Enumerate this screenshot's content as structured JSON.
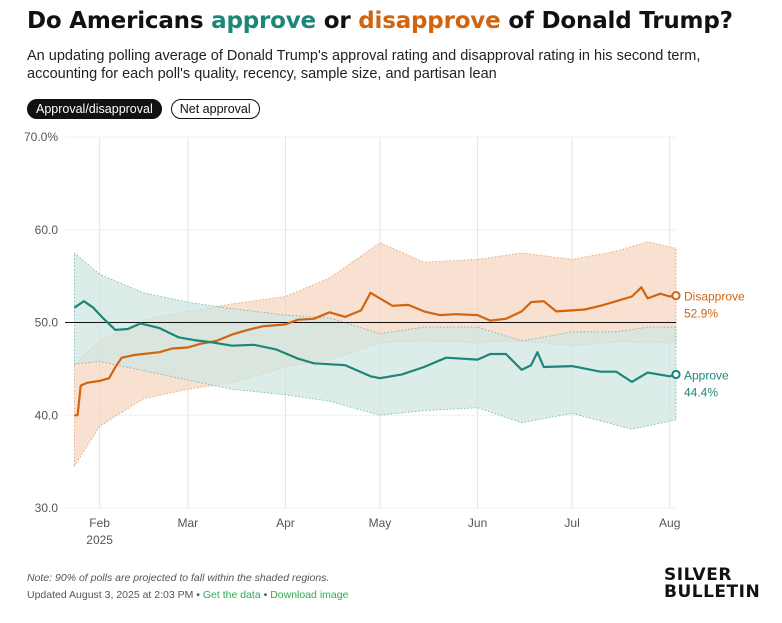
{
  "title": {
    "part1": "Do Americans ",
    "approve_word": "approve",
    "part2": " or ",
    "disapprove_word": "disapprove",
    "part3": " of Donald Trump?"
  },
  "subtitle": "An updating polling average of Donald Trump's approval rating and disapproval rating in his second term, accounting for each poll's quality, recency, sample size, and partisan lean",
  "toggles": {
    "active_label": "Approval/disapproval",
    "inactive_label": "Net approval"
  },
  "footer": {
    "note": "Note: 90% of polls are projected to fall within the shaded regions.",
    "updated": "Updated August 3, 2025 at 2:03 PM",
    "sep1": " • ",
    "get_data": "Get the data",
    "sep2": " • ",
    "download": "Download image"
  },
  "logo": {
    "line1": "SILVER",
    "line2": "BULLETIN"
  },
  "colors": {
    "approve": "#1c8778",
    "disapprove": "#d1640f",
    "approve_band": "#cfe6e1",
    "disapprove_band": "#f7d7c2"
  },
  "chart_data": {
    "type": "line",
    "x_unit": "date (2025)",
    "xlim": [
      "2025-01-21",
      "2025-08-03"
    ],
    "ylim": [
      30,
      70
    ],
    "y_ticks": [
      {
        "value": 70,
        "label": "70.0%"
      },
      {
        "value": 60,
        "label": "60.0"
      },
      {
        "value": 50,
        "label": "50.0"
      },
      {
        "value": 40,
        "label": "40.0"
      },
      {
        "value": 30,
        "label": "30.0"
      }
    ],
    "x_ticks": [
      {
        "date": "2025-02-01",
        "label": "Feb",
        "sublabel": "2025"
      },
      {
        "date": "2025-03-01",
        "label": "Mar",
        "sublabel": ""
      },
      {
        "date": "2025-04-01",
        "label": "Apr",
        "sublabel": ""
      },
      {
        "date": "2025-05-01",
        "label": "May",
        "sublabel": ""
      },
      {
        "date": "2025-06-01",
        "label": "Jun",
        "sublabel": ""
      },
      {
        "date": "2025-07-01",
        "label": "Jul",
        "sublabel": ""
      },
      {
        "date": "2025-08-01",
        "label": "Aug",
        "sublabel": ""
      }
    ],
    "reference_line": 50,
    "grid": "vertical at months",
    "series": [
      {
        "name": "Disapprove",
        "end_label": "Disapprove",
        "end_value_label": "52.9%",
        "points": [
          [
            "2025-01-24",
            40.0
          ],
          [
            "2025-01-25",
            40.0
          ],
          [
            "2025-01-26",
            43.2
          ],
          [
            "2025-01-28",
            43.5
          ],
          [
            "2025-02-01",
            43.7
          ],
          [
            "2025-02-04",
            44.0
          ],
          [
            "2025-02-06",
            45.2
          ],
          [
            "2025-02-08",
            46.2
          ],
          [
            "2025-02-12",
            46.5
          ],
          [
            "2025-02-20",
            46.8
          ],
          [
            "2025-02-24",
            47.2
          ],
          [
            "2025-03-01",
            47.3
          ],
          [
            "2025-03-05",
            47.7
          ],
          [
            "2025-03-10",
            48.0
          ],
          [
            "2025-03-15",
            48.7
          ],
          [
            "2025-03-20",
            49.2
          ],
          [
            "2025-03-25",
            49.6
          ],
          [
            "2025-04-01",
            49.8
          ],
          [
            "2025-04-05",
            50.3
          ],
          [
            "2025-04-10",
            50.4
          ],
          [
            "2025-04-15",
            51.1
          ],
          [
            "2025-04-20",
            50.6
          ],
          [
            "2025-04-25",
            51.3
          ],
          [
            "2025-04-28",
            53.2
          ],
          [
            "2025-05-01",
            52.6
          ],
          [
            "2025-05-05",
            51.8
          ],
          [
            "2025-05-10",
            51.9
          ],
          [
            "2025-05-15",
            51.2
          ],
          [
            "2025-05-20",
            50.8
          ],
          [
            "2025-05-25",
            50.9
          ],
          [
            "2025-06-01",
            50.8
          ],
          [
            "2025-06-05",
            50.2
          ],
          [
            "2025-06-10",
            50.4
          ],
          [
            "2025-06-15",
            51.2
          ],
          [
            "2025-06-18",
            52.2
          ],
          [
            "2025-06-22",
            52.3
          ],
          [
            "2025-06-26",
            51.2
          ],
          [
            "2025-07-01",
            51.3
          ],
          [
            "2025-07-05",
            51.4
          ],
          [
            "2025-07-10",
            51.8
          ],
          [
            "2025-07-15",
            52.3
          ],
          [
            "2025-07-20",
            52.8
          ],
          [
            "2025-07-23",
            53.8
          ],
          [
            "2025-07-25",
            52.6
          ],
          [
            "2025-07-29",
            53.1
          ],
          [
            "2025-08-01",
            52.8
          ],
          [
            "2025-08-03",
            52.9
          ]
        ],
        "band_low": [
          [
            "2025-01-24",
            34.5
          ],
          [
            "2025-02-01",
            38.8
          ],
          [
            "2025-02-15",
            41.8
          ],
          [
            "2025-03-01",
            42.8
          ],
          [
            "2025-03-15",
            43.5
          ],
          [
            "2025-04-01",
            45.2
          ],
          [
            "2025-04-15",
            46.0
          ],
          [
            "2025-05-01",
            47.8
          ],
          [
            "2025-05-15",
            48.0
          ],
          [
            "2025-06-01",
            47.8
          ],
          [
            "2025-06-15",
            48.0
          ],
          [
            "2025-07-01",
            47.5
          ],
          [
            "2025-07-15",
            47.9
          ],
          [
            "2025-08-03",
            47.8
          ]
        ],
        "band_high": [
          [
            "2025-01-24",
            45.5
          ],
          [
            "2025-02-01",
            48.0
          ],
          [
            "2025-02-15",
            50.3
          ],
          [
            "2025-03-01",
            51.2
          ],
          [
            "2025-03-15",
            52.0
          ],
          [
            "2025-04-01",
            52.8
          ],
          [
            "2025-04-15",
            54.8
          ],
          [
            "2025-05-01",
            58.6
          ],
          [
            "2025-05-15",
            56.5
          ],
          [
            "2025-06-01",
            56.8
          ],
          [
            "2025-06-15",
            57.5
          ],
          [
            "2025-07-01",
            56.8
          ],
          [
            "2025-07-15",
            57.7
          ],
          [
            "2025-07-25",
            58.7
          ],
          [
            "2025-08-03",
            58.0
          ]
        ]
      },
      {
        "name": "Approve",
        "end_label": "Approve",
        "end_value_label": "44.4%",
        "points": [
          [
            "2025-01-24",
            51.6
          ],
          [
            "2025-01-27",
            52.3
          ],
          [
            "2025-01-30",
            51.6
          ],
          [
            "2025-02-02",
            50.5
          ],
          [
            "2025-02-06",
            49.2
          ],
          [
            "2025-02-10",
            49.3
          ],
          [
            "2025-02-14",
            49.9
          ],
          [
            "2025-02-20",
            49.4
          ],
          [
            "2025-02-26",
            48.4
          ],
          [
            "2025-03-03",
            48.1
          ],
          [
            "2025-03-08",
            47.9
          ],
          [
            "2025-03-15",
            47.5
          ],
          [
            "2025-03-22",
            47.6
          ],
          [
            "2025-03-29",
            47.1
          ],
          [
            "2025-04-05",
            46.1
          ],
          [
            "2025-04-10",
            45.6
          ],
          [
            "2025-04-20",
            45.4
          ],
          [
            "2025-04-28",
            44.2
          ],
          [
            "2025-05-01",
            44.0
          ],
          [
            "2025-05-08",
            44.4
          ],
          [
            "2025-05-15",
            45.2
          ],
          [
            "2025-05-22",
            46.2
          ],
          [
            "2025-06-01",
            46.0
          ],
          [
            "2025-06-05",
            46.6
          ],
          [
            "2025-06-10",
            46.6
          ],
          [
            "2025-06-15",
            44.9
          ],
          [
            "2025-06-18",
            45.4
          ],
          [
            "2025-06-20",
            46.8
          ],
          [
            "2025-06-22",
            45.2
          ],
          [
            "2025-07-01",
            45.3
          ],
          [
            "2025-07-10",
            44.7
          ],
          [
            "2025-07-15",
            44.7
          ],
          [
            "2025-07-20",
            43.6
          ],
          [
            "2025-07-25",
            44.6
          ],
          [
            "2025-08-01",
            44.2
          ],
          [
            "2025-08-03",
            44.4
          ]
        ],
        "band_low": [
          [
            "2025-01-24",
            45.5
          ],
          [
            "2025-02-01",
            45.8
          ],
          [
            "2025-02-15",
            44.8
          ],
          [
            "2025-03-01",
            43.8
          ],
          [
            "2025-03-15",
            42.8
          ],
          [
            "2025-04-01",
            42.2
          ],
          [
            "2025-04-15",
            41.5
          ],
          [
            "2025-05-01",
            40.0
          ],
          [
            "2025-05-15",
            40.5
          ],
          [
            "2025-06-01",
            40.8
          ],
          [
            "2025-06-15",
            39.2
          ],
          [
            "2025-07-01",
            40.2
          ],
          [
            "2025-07-20",
            38.5
          ],
          [
            "2025-08-03",
            39.5
          ]
        ],
        "band_high": [
          [
            "2025-01-24",
            57.5
          ],
          [
            "2025-02-01",
            55.2
          ],
          [
            "2025-02-15",
            53.2
          ],
          [
            "2025-03-01",
            52.2
          ],
          [
            "2025-03-15",
            51.5
          ],
          [
            "2025-04-01",
            50.8
          ],
          [
            "2025-04-15",
            50.5
          ],
          [
            "2025-05-01",
            48.8
          ],
          [
            "2025-05-15",
            49.5
          ],
          [
            "2025-06-01",
            49.5
          ],
          [
            "2025-06-15",
            48.0
          ],
          [
            "2025-07-01",
            49.0
          ],
          [
            "2025-07-15",
            49.0
          ],
          [
            "2025-07-25",
            49.5
          ],
          [
            "2025-08-03",
            49.5
          ]
        ]
      }
    ]
  }
}
